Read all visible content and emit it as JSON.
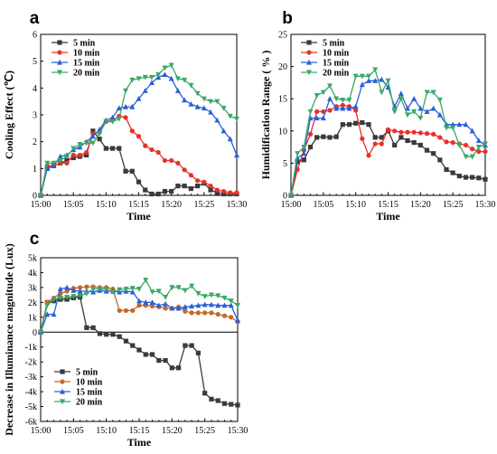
{
  "figure": {
    "panel_labels": [
      "a",
      "b",
      "c"
    ]
  },
  "chart_data": [
    {
      "type": "line",
      "panel": "a",
      "xlabel": "Time",
      "ylabel": "Cooling Effect (℃)",
      "x_tick_labels": [
        "15:00",
        "15:05",
        "15:10",
        "15:15",
        "15:20",
        "15:25",
        "15:30"
      ],
      "xlim": [
        0,
        30
      ],
      "ylim": [
        0,
        6
      ],
      "y_ticks": [
        0,
        1,
        2,
        3,
        4,
        5,
        6
      ],
      "y_tick_labels": [
        "0",
        "1",
        "2",
        "3",
        "4",
        "5",
        "6"
      ],
      "grid": false,
      "legend": "top-left",
      "series": [
        {
          "name": "5  min",
          "color": "#3a3a3a",
          "marker": "square",
          "x": [
            0,
            1,
            2,
            3,
            4,
            5,
            6,
            7,
            8,
            9,
            10,
            11,
            12,
            13,
            14,
            15,
            16,
            17,
            18,
            19,
            20,
            21,
            22,
            23,
            24,
            25,
            26,
            27,
            28,
            29,
            30
          ],
          "values": [
            0,
            1.0,
            1.1,
            1.2,
            1.3,
            1.4,
            1.45,
            1.5,
            2.4,
            2.1,
            1.75,
            1.75,
            1.75,
            0.9,
            0.9,
            0.5,
            0.2,
            0.05,
            0.05,
            0.15,
            0.15,
            0.35,
            0.35,
            0.25,
            0.35,
            0.45,
            0.2,
            0.1,
            0.05,
            0.05,
            0.05
          ]
        },
        {
          "name": "10 min",
          "color": "#e8302a",
          "marker": "circle",
          "x": [
            0,
            1,
            2,
            3,
            4,
            5,
            6,
            7,
            8,
            9,
            10,
            11,
            12,
            13,
            14,
            15,
            16,
            17,
            18,
            19,
            20,
            21,
            22,
            23,
            24,
            25,
            26,
            27,
            28,
            29,
            30
          ],
          "values": [
            0,
            1.1,
            1.1,
            1.2,
            1.2,
            1.5,
            1.5,
            1.6,
            2.3,
            2.35,
            2.75,
            2.8,
            2.95,
            2.9,
            2.4,
            2.2,
            1.85,
            1.7,
            1.6,
            1.3,
            1.3,
            1.2,
            0.95,
            0.75,
            0.55,
            0.5,
            0.35,
            0.2,
            0.15,
            0.1,
            0.1
          ]
        },
        {
          "name": "15 min",
          "color": "#2a5fd8",
          "marker": "triangle-up",
          "x": [
            0,
            1,
            2,
            3,
            4,
            5,
            6,
            7,
            8,
            9,
            10,
            11,
            12,
            13,
            14,
            15,
            16,
            17,
            18,
            19,
            20,
            21,
            22,
            23,
            24,
            25,
            26,
            27,
            28,
            29,
            30
          ],
          "values": [
            0,
            1.0,
            1.1,
            1.45,
            1.5,
            1.7,
            1.8,
            2.0,
            2.2,
            2.45,
            2.8,
            2.9,
            3.25,
            3.3,
            3.3,
            3.6,
            3.9,
            4.2,
            4.4,
            4.5,
            4.35,
            3.9,
            3.55,
            3.4,
            3.3,
            3.25,
            3.1,
            2.8,
            2.4,
            2.1,
            1.5
          ]
        },
        {
          "name": "20 min",
          "color": "#3aa866",
          "marker": "triangle-down",
          "x": [
            0,
            1,
            2,
            3,
            4,
            5,
            6,
            7,
            8,
            9,
            10,
            11,
            12,
            13,
            14,
            15,
            16,
            17,
            18,
            19,
            20,
            21,
            22,
            23,
            24,
            25,
            26,
            27,
            28,
            29,
            30
          ],
          "values": [
            0,
            1.2,
            1.2,
            1.3,
            1.45,
            1.75,
            1.9,
            1.95,
            1.95,
            2.3,
            2.75,
            2.75,
            2.85,
            3.9,
            4.3,
            4.35,
            4.4,
            4.4,
            4.5,
            4.75,
            4.85,
            4.35,
            4.3,
            4.1,
            3.8,
            3.6,
            3.5,
            3.5,
            3.25,
            2.95,
            2.85
          ]
        }
      ]
    },
    {
      "type": "line",
      "panel": "b",
      "xlabel": "Time",
      "ylabel": "Humidification Range ( % )",
      "x_tick_labels": [
        "15:00",
        "15:05",
        "15:10",
        "15:15",
        "15:20",
        "15:25",
        "15:30"
      ],
      "xlim": [
        0,
        30
      ],
      "ylim": [
        0,
        25
      ],
      "y_ticks": [
        0,
        5,
        10,
        15,
        20,
        25
      ],
      "y_tick_labels": [
        "0",
        "5",
        "10",
        "15",
        "20",
        "25"
      ],
      "grid": false,
      "legend": "top-left",
      "series": [
        {
          "name": "5  min",
          "color": "#3a3a3a",
          "marker": "square",
          "x": [
            0,
            1,
            2,
            3,
            4,
            5,
            6,
            7,
            8,
            9,
            10,
            11,
            12,
            13,
            14,
            15,
            16,
            17,
            18,
            19,
            20,
            21,
            22,
            23,
            24,
            25,
            26,
            27,
            28,
            29,
            30
          ],
          "values": [
            0,
            5.2,
            5.5,
            7.5,
            9.0,
            9.1,
            9.0,
            9.1,
            11.0,
            11.0,
            11.2,
            11.3,
            11.0,
            9.0,
            9.0,
            10.0,
            7.8,
            9.0,
            8.5,
            8.2,
            7.8,
            7.0,
            6.5,
            5.5,
            4.0,
            3.5,
            3.0,
            2.8,
            2.8,
            2.7,
            2.5
          ]
        },
        {
          "name": "10 min",
          "color": "#e8302a",
          "marker": "circle",
          "x": [
            0,
            1,
            2,
            3,
            4,
            5,
            6,
            7,
            8,
            9,
            10,
            11,
            12,
            13,
            14,
            15,
            16,
            17,
            18,
            19,
            20,
            21,
            22,
            23,
            24,
            25,
            26,
            27,
            28,
            29,
            30
          ],
          "values": [
            0,
            4.0,
            7.0,
            9.5,
            13.0,
            13.0,
            13.2,
            13.8,
            14.0,
            13.8,
            13.2,
            8.8,
            6.2,
            8.0,
            8.0,
            10.2,
            10.0,
            9.8,
            9.8,
            9.8,
            9.7,
            9.6,
            9.5,
            9.0,
            8.3,
            8.2,
            8.0,
            7.8,
            7.2,
            6.8,
            6.8
          ]
        },
        {
          "name": "15 min",
          "color": "#2a5fd8",
          "marker": "triangle-up",
          "x": [
            0,
            1,
            2,
            3,
            4,
            5,
            6,
            7,
            8,
            9,
            10,
            11,
            12,
            13,
            14,
            15,
            16,
            17,
            18,
            19,
            20,
            21,
            22,
            23,
            24,
            25,
            26,
            27,
            28,
            29,
            30
          ],
          "values": [
            0,
            5.8,
            6.5,
            12.0,
            12.0,
            12.0,
            15.0,
            13.5,
            13.5,
            13.5,
            13.8,
            17.2,
            17.8,
            17.8,
            18.0,
            16.8,
            13.8,
            15.8,
            13.5,
            15.0,
            13.5,
            13.0,
            13.5,
            12.5,
            11.0,
            11.0,
            11.0,
            11.0,
            10.0,
            8.5,
            7.8
          ]
        },
        {
          "name": "20 min",
          "color": "#3aa866",
          "marker": "triangle-down",
          "x": [
            0,
            1,
            2,
            3,
            4,
            5,
            6,
            7,
            8,
            9,
            10,
            11,
            12,
            13,
            14,
            15,
            16,
            17,
            18,
            19,
            20,
            21,
            22,
            23,
            24,
            25,
            26,
            27,
            28,
            29,
            30
          ],
          "values": [
            0,
            6.5,
            7.5,
            13.0,
            15.5,
            16.0,
            17.0,
            15.0,
            14.8,
            14.8,
            18.5,
            18.5,
            18.5,
            19.5,
            16.0,
            17.8,
            13.0,
            15.0,
            12.5,
            13.0,
            12.0,
            16.0,
            16.0,
            14.8,
            10.5,
            10.5,
            7.8,
            6.0,
            6.0,
            7.5,
            8.0
          ]
        }
      ]
    },
    {
      "type": "line",
      "panel": "c",
      "xlabel": "Time",
      "ylabel": "Decrease in Illuminance magnitude (Lux)",
      "x_tick_labels": [
        "15:00",
        "15:05",
        "15:10",
        "15:15",
        "15:20",
        "15:25",
        "15:30"
      ],
      "xlim": [
        0,
        30
      ],
      "ylim": [
        -6000,
        5000
      ],
      "y_ticks": [
        -6000,
        -5000,
        -4000,
        -3000,
        -2000,
        -1000,
        0,
        1000,
        2000,
        3000,
        4000,
        5000
      ],
      "y_tick_labels": [
        "-6k",
        "-5k",
        "-4k",
        "-3k",
        "-2k",
        "-1k",
        "0",
        "1k",
        "2k",
        "3k",
        "4k",
        "5k"
      ],
      "grid": false,
      "legend": "bottom-left",
      "series": [
        {
          "name": "5  min",
          "color": "#3a3a3a",
          "marker": "square",
          "x": [
            0,
            1,
            2,
            3,
            4,
            5,
            6,
            7,
            8,
            9,
            10,
            11,
            12,
            13,
            14,
            15,
            16,
            17,
            18,
            19,
            20,
            21,
            22,
            23,
            24,
            25,
            26,
            27,
            28,
            29,
            30
          ],
          "values": [
            0,
            2000,
            2100,
            2200,
            2200,
            2300,
            2350,
            300,
            300,
            -100,
            -150,
            -150,
            -300,
            -600,
            -900,
            -1200,
            -1500,
            -1500,
            -1900,
            -1900,
            -2400,
            -2400,
            -900,
            -900,
            -1400,
            -4100,
            -4500,
            -4600,
            -4800,
            -4850,
            -4900
          ]
        },
        {
          "name": "10 min",
          "color": "#c06a2a",
          "marker": "circle",
          "x": [
            0,
            1,
            2,
            3,
            4,
            5,
            6,
            7,
            8,
            9,
            10,
            11,
            12,
            13,
            14,
            15,
            16,
            17,
            18,
            19,
            20,
            21,
            22,
            23,
            24,
            25,
            26,
            27,
            28,
            29,
            30
          ],
          "values": [
            0,
            2000,
            2300,
            2600,
            2750,
            2950,
            3000,
            3050,
            3050,
            3000,
            3000,
            2900,
            1450,
            1450,
            1450,
            1800,
            1800,
            1750,
            1700,
            1600,
            1600,
            1700,
            1400,
            1300,
            1300,
            1300,
            1300,
            1200,
            1100,
            1000,
            700
          ]
        },
        {
          "name": "15 min",
          "color": "#2a5fd8",
          "marker": "triangle-up",
          "x": [
            0,
            1,
            2,
            3,
            4,
            5,
            6,
            7,
            8,
            9,
            10,
            11,
            12,
            13,
            14,
            15,
            16,
            17,
            18,
            19,
            20,
            21,
            22,
            23,
            24,
            25,
            26,
            27,
            28,
            29,
            30
          ],
          "values": [
            0,
            1200,
            1200,
            2900,
            3000,
            2800,
            2750,
            2750,
            2700,
            2800,
            2750,
            2750,
            2700,
            2750,
            2700,
            2100,
            2000,
            2000,
            1800,
            1900,
            1600,
            1600,
            1700,
            1750,
            1800,
            1850,
            1850,
            1800,
            1800,
            1800,
            800
          ]
        },
        {
          "name": "20 min",
          "color": "#3aa866",
          "marker": "triangle-down",
          "x": [
            0,
            1,
            2,
            3,
            4,
            5,
            6,
            7,
            8,
            9,
            10,
            11,
            12,
            13,
            14,
            15,
            16,
            17,
            18,
            19,
            20,
            21,
            22,
            23,
            24,
            25,
            26,
            27,
            28,
            29,
            30
          ],
          "values": [
            0,
            1800,
            2200,
            2300,
            2350,
            2400,
            2450,
            2600,
            2900,
            2900,
            2900,
            2700,
            2850,
            2900,
            2950,
            2900,
            3500,
            2700,
            2750,
            2350,
            3000,
            3000,
            2800,
            3100,
            2600,
            2400,
            2500,
            2450,
            2300,
            2100,
            1800
          ]
        }
      ]
    }
  ]
}
